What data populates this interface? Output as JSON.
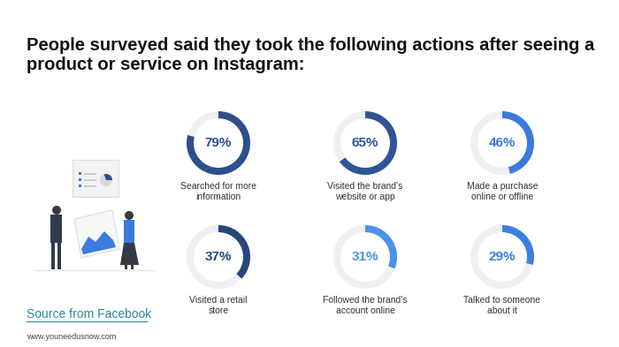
{
  "chart_data": {
    "type": "donut",
    "title": "People surveyed said they took the following actions after seeing a product or service on Instagram:",
    "categories": [
      "Searched for more information",
      "Visited the brand's website or app",
      "Made a purchase online or offline",
      "Visited a retail store",
      "Followed the brand's account online",
      "Talked to someone about it"
    ],
    "values": [
      79,
      65,
      46,
      37,
      31,
      29
    ],
    "value_labels": [
      "79%",
      "65%",
      "46%",
      "37%",
      "31%",
      "29%"
    ],
    "data_labels": true,
    "colors": [
      "#2d4f8c",
      "#2f5596",
      "#3b7bdc",
      "#27467c",
      "#4d90ea",
      "#3a80e2"
    ],
    "annotations": [
      "Source from Facebook",
      "www.youneedusnow.com"
    ]
  }
}
